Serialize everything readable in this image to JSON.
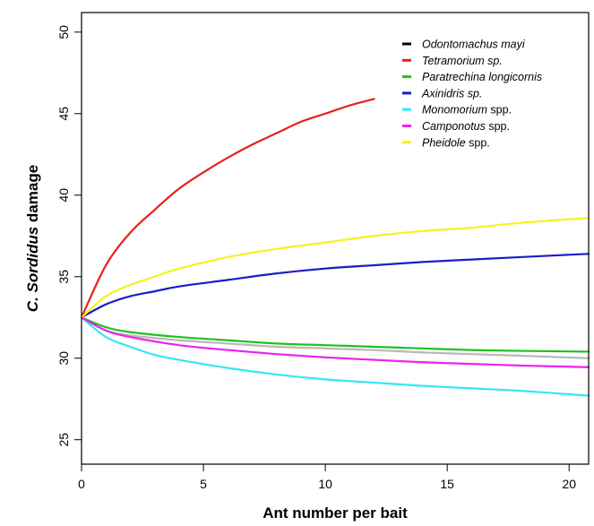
{
  "chart_data": {
    "type": "line",
    "title": "",
    "xlabel": "Ant number per bait",
    "ylabel_parts": [
      {
        "text": "C. ",
        "italic": true
      },
      {
        "text": "Sordidus",
        "italic": true
      },
      {
        "text": " damage",
        "italic": false
      }
    ],
    "xlim": [
      0,
      20.8
    ],
    "ylim": [
      23.5,
      51.2
    ],
    "x_ticks": [
      0,
      5,
      10,
      15,
      20
    ],
    "y_ticks": [
      25,
      30,
      35,
      40,
      45,
      50
    ],
    "grid": false,
    "legend_position": "top-right",
    "series": [
      {
        "name_parts": [
          {
            "text": "Odontomachus mayi",
            "italic": true
          }
        ],
        "color": "#b8b8b8",
        "x": [
          0,
          1,
          2,
          4,
          6,
          8,
          10,
          12,
          14,
          16,
          18,
          20.8
        ],
        "y": [
          32.5,
          31.7,
          31.4,
          31.1,
          30.9,
          30.7,
          30.6,
          30.5,
          30.35,
          30.25,
          30.15,
          30.0
        ]
      },
      {
        "name_parts": [
          {
            "text": "Tetramorium sp.",
            "italic": true
          }
        ],
        "color": "#e8201c",
        "x": [
          0,
          1,
          2,
          3,
          4,
          5,
          6,
          7,
          8,
          9,
          10,
          11,
          12
        ],
        "y": [
          32.5,
          35.7,
          37.7,
          39.1,
          40.4,
          41.4,
          42.3,
          43.1,
          43.8,
          44.5,
          45.0,
          45.5,
          45.9
        ]
      },
      {
        "name_parts": [
          {
            "text": "Paratrechina longicornis",
            "italic": true
          }
        ],
        "color": "#1fc01f",
        "x": [
          0,
          1,
          2,
          4,
          6,
          8,
          10,
          12,
          14,
          16,
          18,
          20.8
        ],
        "y": [
          32.5,
          31.9,
          31.6,
          31.3,
          31.1,
          30.9,
          30.8,
          30.7,
          30.6,
          30.5,
          30.45,
          30.4
        ]
      },
      {
        "name_parts": [
          {
            "text": "Axinidris sp.",
            "italic": true
          }
        ],
        "color": "#1c1ccc",
        "x": [
          0,
          1,
          2,
          3,
          4,
          6,
          8,
          10,
          12,
          14,
          16,
          18,
          20.8
        ],
        "y": [
          32.5,
          33.3,
          33.8,
          34.1,
          34.4,
          34.8,
          35.2,
          35.5,
          35.7,
          35.9,
          36.05,
          36.2,
          36.4
        ]
      },
      {
        "name_parts": [
          {
            "text": "Monomorium",
            "italic": true
          },
          {
            "text": " spp.",
            "italic": false
          }
        ],
        "color": "#33e8f2",
        "x": [
          0,
          1,
          2,
          3,
          4,
          6,
          8,
          10,
          12,
          14,
          16,
          18,
          20.8
        ],
        "y": [
          32.5,
          31.3,
          30.7,
          30.2,
          29.9,
          29.4,
          29.0,
          28.7,
          28.5,
          28.3,
          28.15,
          28.0,
          27.7
        ]
      },
      {
        "name_parts": [
          {
            "text": "Camponotus",
            "italic": true
          },
          {
            "text": " spp.",
            "italic": false
          }
        ],
        "color": "#ee22ee",
        "x": [
          0,
          1,
          2,
          4,
          6,
          8,
          10,
          12,
          14,
          16,
          18,
          20.8
        ],
        "y": [
          32.5,
          31.7,
          31.3,
          30.8,
          30.5,
          30.25,
          30.05,
          29.9,
          29.75,
          29.65,
          29.55,
          29.45
        ]
      },
      {
        "name_parts": [
          {
            "text": "Pheidole",
            "italic": true
          },
          {
            "text": " spp.",
            "italic": false
          }
        ],
        "color": "#f4f41e",
        "x": [
          0,
          1,
          2,
          3,
          4,
          6,
          8,
          10,
          12,
          14,
          16,
          18,
          20.8
        ],
        "y": [
          32.5,
          33.8,
          34.5,
          35.0,
          35.5,
          36.2,
          36.7,
          37.1,
          37.5,
          37.8,
          38.0,
          38.3,
          38.6
        ]
      }
    ]
  }
}
